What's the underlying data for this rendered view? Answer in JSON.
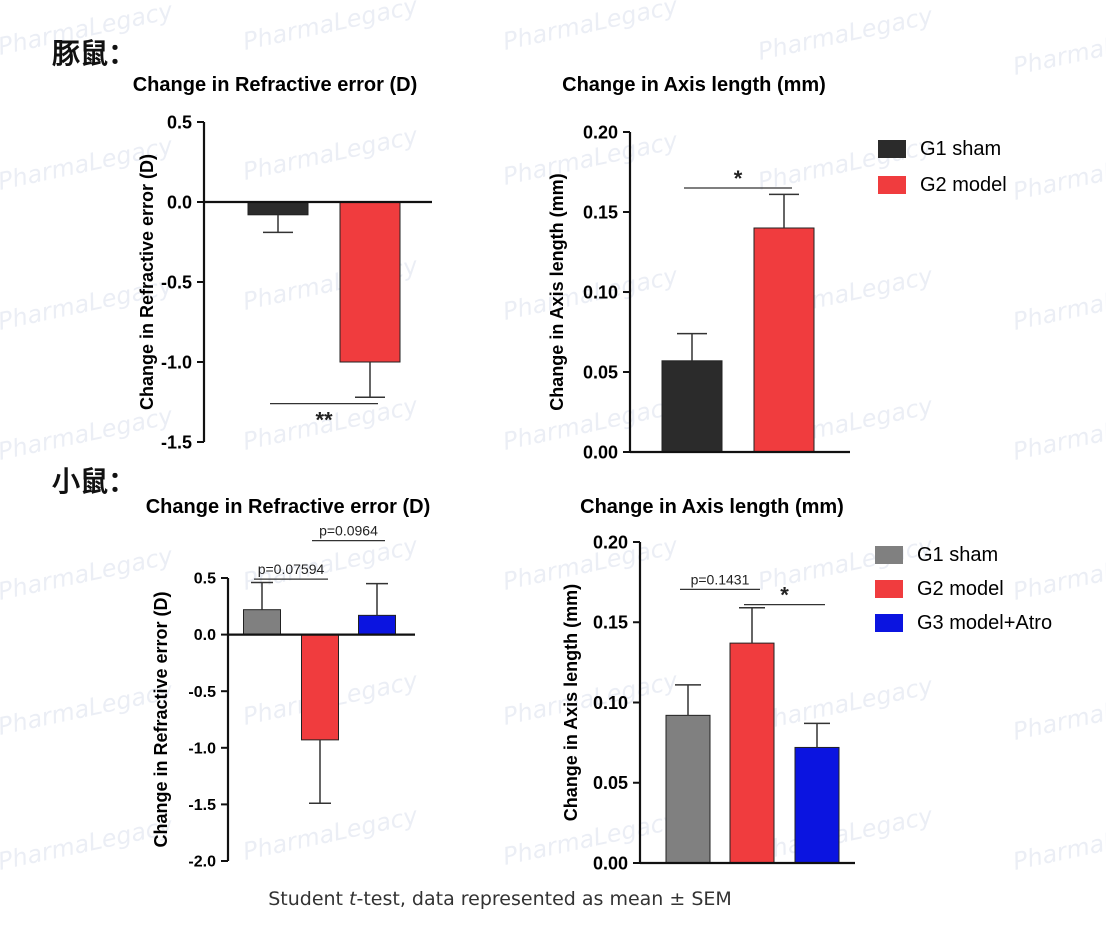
{
  "sections": {
    "top": "豚鼠：",
    "bottom": "小鼠："
  },
  "footnote": {
    "prefix": "Student ",
    "t": "t",
    "suffix": "-test, data represented as mean ± SEM"
  },
  "watermark": {
    "brand": "PharmaLegacy"
  },
  "legends": {
    "top": [
      {
        "label": "G1 sham",
        "color": "#2b2b2b"
      },
      {
        "label": "G2 model",
        "color": "#f03c3e"
      }
    ],
    "bottom": [
      {
        "label": "G1 sham",
        "color": "#808080"
      },
      {
        "label": "G2 model",
        "color": "#f03c3e"
      },
      {
        "label": "G3 model+Atro",
        "color": "#0b14e0"
      }
    ]
  },
  "chart_data": [
    {
      "type": "bar",
      "title": "Change in Refractive error  (D)",
      "ylabel": "Change in Refractive error  (D)",
      "xlabel": "",
      "ylim": [
        -1.5,
        0.5
      ],
      "yticks": [
        0.5,
        0.0,
        -0.5,
        -1.0,
        -1.5
      ],
      "ytick_labels": [
        "0.5",
        "0.0",
        "-0.5",
        "-1.0",
        "-1.5"
      ],
      "categories": [
        "G1 sham",
        "G2 model"
      ],
      "values": [
        -0.08,
        -1.0
      ],
      "errors": [
        0.11,
        0.22
      ],
      "colors": [
        "#2b2b2b",
        "#f03c3e"
      ],
      "annotations": [
        {
          "from": 0,
          "to": 1,
          "y": -1.26,
          "label": "**",
          "position": "below"
        }
      ]
    },
    {
      "type": "bar",
      "title": "Change in Axis length (mm)",
      "ylabel": "Change in Axis length (mm)",
      "xlabel": "",
      "ylim": [
        0,
        0.2
      ],
      "yticks": [
        0.2,
        0.15,
        0.1,
        0.05,
        0.0
      ],
      "ytick_labels": [
        "0.20",
        "0.15",
        "0.10",
        "0.05",
        "0.00"
      ],
      "categories": [
        "G1 sham",
        "G2 model"
      ],
      "values": [
        0.057,
        0.14
      ],
      "errors": [
        0.017,
        0.021
      ],
      "colors": [
        "#2b2b2b",
        "#f03c3e"
      ],
      "annotations": [
        {
          "from": 0,
          "to": 1,
          "y": 0.165,
          "label": "*",
          "position": "above"
        }
      ]
    },
    {
      "type": "bar",
      "title": "Change in Refractive error  (D)",
      "ylabel": "Change in Refractive error  (D)",
      "xlabel": "",
      "ylim": [
        -2.0,
        0.5
      ],
      "yticks": [
        0.5,
        0.0,
        -0.5,
        -1.0,
        -1.5,
        -2.0
      ],
      "ytick_labels": [
        "0.5",
        "0.0",
        "-0.5",
        "-1.0",
        "-1.5",
        "-2.0"
      ],
      "categories": [
        "G1 sham",
        "G2 model",
        "G3 model+Atro"
      ],
      "values": [
        0.22,
        -0.93,
        0.17
      ],
      "errors": [
        0.24,
        0.56,
        0.28
      ],
      "colors": [
        "#808080",
        "#f03c3e",
        "#0b14e0"
      ],
      "annotations": [
        {
          "from": 0,
          "to": 1,
          "y": 0.49,
          "label": "p=0.07594",
          "position": "above"
        },
        {
          "from": 1,
          "to": 2,
          "y": 0.83,
          "label": "p=0.0964",
          "position": "above"
        }
      ]
    },
    {
      "type": "bar",
      "title": "Change in Axis length (mm)",
      "ylabel": "Change in Axis length (mm)",
      "xlabel": "",
      "ylim": [
        0,
        0.2
      ],
      "yticks": [
        0.2,
        0.15,
        0.1,
        0.05,
        0.0
      ],
      "ytick_labels": [
        "0.20",
        "0.15",
        "0.10",
        "0.05",
        "0.00"
      ],
      "categories": [
        "G1 sham",
        "G2 model",
        "G3 model+Atro"
      ],
      "values": [
        0.092,
        0.137,
        0.072
      ],
      "errors": [
        0.019,
        0.022,
        0.015
      ],
      "colors": [
        "#808080",
        "#f03c3e",
        "#0b14e0"
      ],
      "annotations": [
        {
          "from": 0,
          "to": 1,
          "y": 0.1705,
          "label": "p=0.1431",
          "position": "above"
        },
        {
          "from": 1,
          "to": 2,
          "y": 0.161,
          "label": "*",
          "position": "above"
        }
      ]
    }
  ]
}
